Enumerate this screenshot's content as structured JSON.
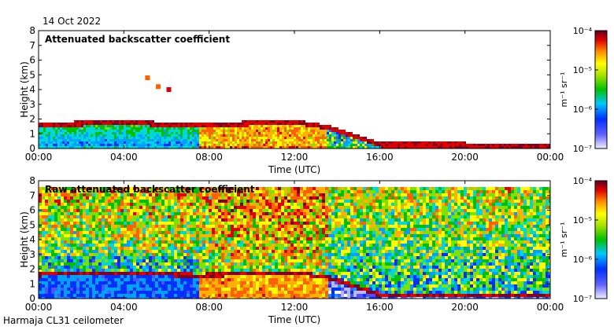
{
  "date_label": "14 Oct 2022",
  "instrument_label": "Harmaja CL31 ceilometer",
  "colorbar_unit": "m⁻¹ sr⁻¹",
  "chart_data": [
    {
      "type": "heatmap",
      "title": "Attenuated backscatter coefficient",
      "xlabel": "Time (UTC)",
      "ylabel": "Height (km)",
      "xlim": [
        "00:00",
        "00:00"
      ],
      "x_ticks": [
        "00:00",
        "04:00",
        "08:00",
        "12:00",
        "16:00",
        "20:00",
        "00:00"
      ],
      "ylim": [
        0,
        8
      ],
      "y_ticks": [
        "0",
        "1",
        "2",
        "3",
        "4",
        "5",
        "6",
        "7",
        "8"
      ],
      "colorbar": {
        "scale": "log",
        "range": [
          1e-07,
          0.0001
        ],
        "tick_labels": [
          "10⁻⁴",
          "10⁻⁵",
          "10⁻⁶",
          "10⁻⁷"
        ]
      },
      "features": {
        "boundary_layer_top_km": {
          "times_h": [
            0,
            4,
            7.5,
            12,
            13.5,
            16,
            20,
            24
          ],
          "values": [
            1.7,
            1.8,
            1.65,
            1.85,
            1.5,
            0.3,
            0.3,
            0.25
          ]
        },
        "elevated_cloud_km": {
          "times_h": [
            5.0,
            5.5,
            6.0
          ],
          "values": [
            4.8,
            4.2,
            4.0
          ]
        }
      }
    },
    {
      "type": "heatmap",
      "title": "Raw attenuated backscatter coefficient",
      "xlabel": "Time (UTC)",
      "ylabel": "Height (km)",
      "xlim": [
        "00:00",
        "00:00"
      ],
      "x_ticks": [
        "00:00",
        "04:00",
        "08:00",
        "12:00",
        "16:00",
        "20:00",
        "00:00"
      ],
      "ylim": [
        0,
        8
      ],
      "y_ticks": [
        "0",
        "1",
        "2",
        "3",
        "4",
        "5",
        "6",
        "7",
        "8"
      ],
      "colorbar": {
        "scale": "log",
        "range": [
          1e-07,
          0.0001
        ],
        "tick_labels": [
          "10⁻⁴",
          "10⁻⁵",
          "10⁻⁶",
          "10⁻⁷"
        ]
      }
    }
  ]
}
